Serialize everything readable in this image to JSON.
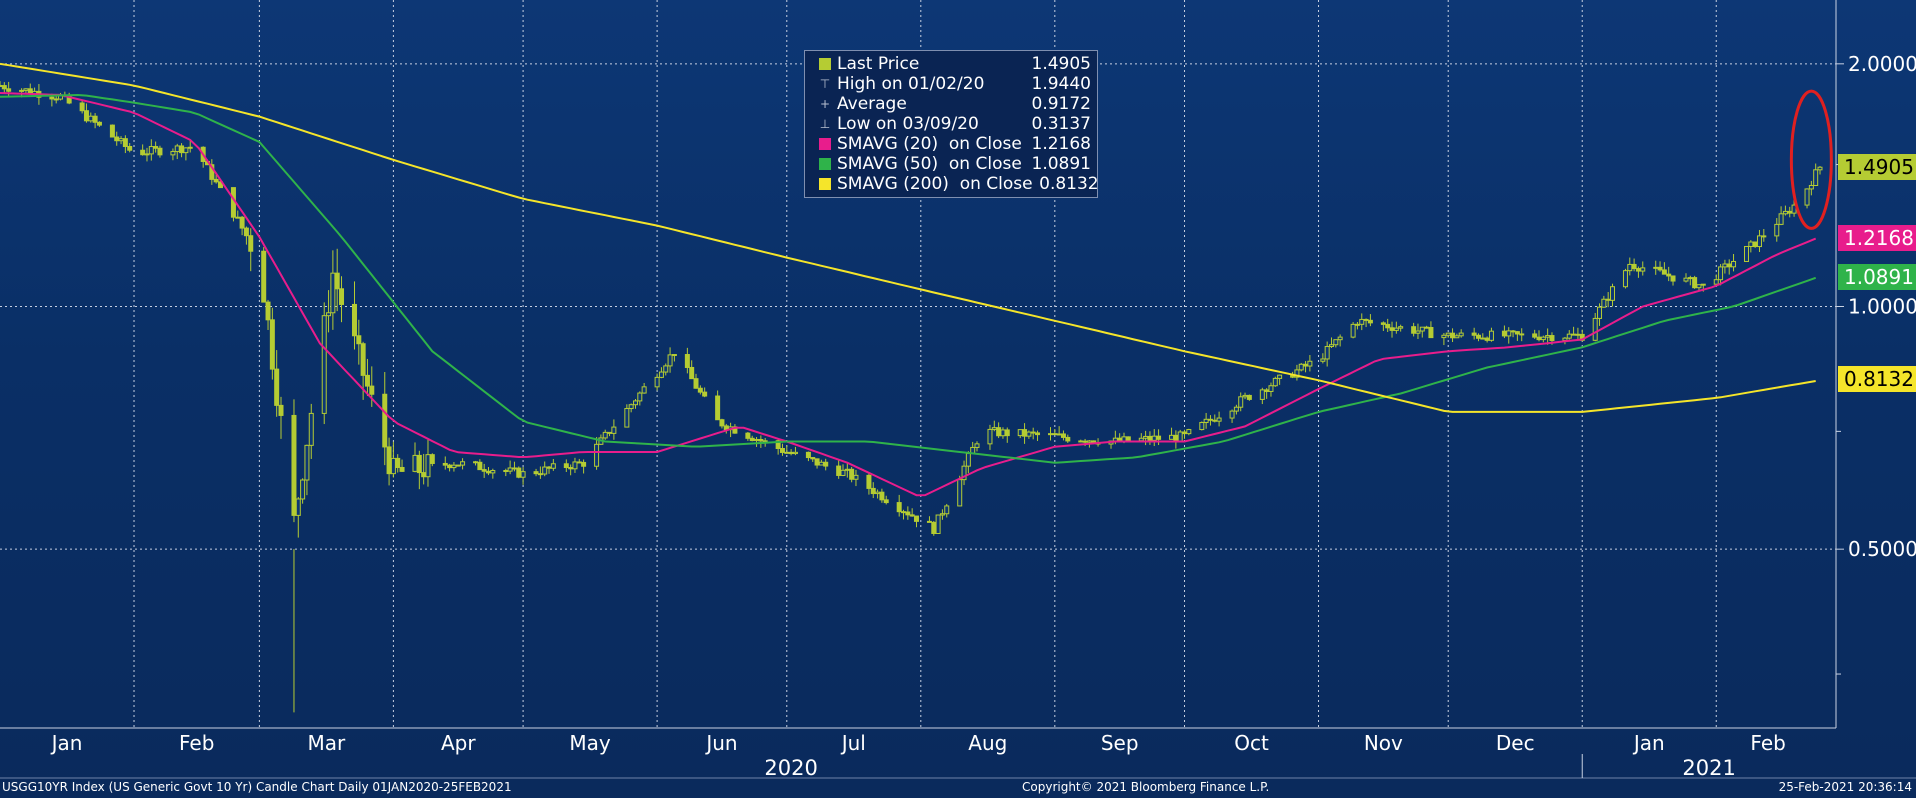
{
  "chart_data": {
    "type": "candlestick",
    "title": "USGG10YR Index (US Generic Govt 10 Yr) Candle Chart  Daily 01JAN2020-25FEB2021",
    "x_range": [
      "2020-01-01",
      "2021-02-25"
    ],
    "y_scale": "log",
    "ylim": [
      0.3,
      2.4
    ],
    "y_ticks": [
      "2.0000",
      "1.0000",
      "0.5000"
    ],
    "x_tick_labels": [
      "Jan",
      "Feb",
      "Mar",
      "Apr",
      "May",
      "Jun",
      "Jul",
      "Aug",
      "Sep",
      "Oct",
      "Nov",
      "Dec",
      "Jan",
      "Feb"
    ],
    "year_labels": [
      "2020",
      "2021"
    ],
    "grid": true,
    "legend_position": "top-center",
    "legend": [
      {
        "label": "Last Price",
        "value": "1.4905",
        "glyph": "square",
        "color": "#b5cc33"
      },
      {
        "label": "High on 01/02/20",
        "value": "1.9440",
        "glyph": "high"
      },
      {
        "label": "Average",
        "value": "0.9172",
        "glyph": "average"
      },
      {
        "label": "Low on 03/09/20",
        "value": "0.3137",
        "glyph": "low"
      },
      {
        "label": "SMAVG (20)  on Close",
        "value": "1.2168",
        "glyph": "square",
        "color": "#e81d8c"
      },
      {
        "label": "SMAVG (50)  on Close",
        "value": "1.0891",
        "glyph": "square",
        "color": "#2fb34a"
      },
      {
        "label": "SMAVG (200)  on Close",
        "value": "0.8132",
        "glyph": "square",
        "color": "#f5e52a"
      }
    ],
    "price_tags": [
      {
        "value": "1.4905",
        "color": "#b5cc33"
      },
      {
        "value": "1.2168",
        "color": "#e81d8c"
      },
      {
        "value": "1.0891",
        "color": "#2fb34a"
      },
      {
        "value": "0.8132",
        "color": "#f5e52a"
      }
    ],
    "series": [
      {
        "name": "Last Price",
        "type": "candles",
        "color": "#b5cc33",
        "x": [
          "2020-01-01",
          "2020-01-15",
          "2020-02-01",
          "2020-02-15",
          "2020-03-01",
          "2020-03-09",
          "2020-03-18",
          "2020-04-01",
          "2020-04-15",
          "2020-05-01",
          "2020-05-15",
          "2020-06-05",
          "2020-06-15",
          "2020-07-01",
          "2020-07-15",
          "2020-08-04",
          "2020-08-15",
          "2020-09-01",
          "2020-09-15",
          "2020-10-01",
          "2020-10-15",
          "2020-11-01",
          "2020-11-10",
          "2020-12-01",
          "2020-12-15",
          "2021-01-01",
          "2021-01-12",
          "2021-01-29",
          "2021-02-10",
          "2021-02-20",
          "2021-02-25"
        ],
        "values": [
          1.88,
          1.82,
          1.55,
          1.58,
          1.15,
          0.54,
          1.1,
          0.62,
          0.64,
          0.62,
          0.64,
          0.88,
          0.72,
          0.66,
          0.62,
          0.53,
          0.7,
          0.69,
          0.68,
          0.69,
          0.77,
          0.86,
          0.96,
          0.92,
          0.92,
          0.92,
          1.13,
          1.06,
          1.2,
          1.35,
          1.49
        ]
      },
      {
        "name": "SMAVG (20)",
        "type": "line",
        "color": "#e81d8c",
        "x": [
          "2020-01-01",
          "2020-01-15",
          "2020-02-01",
          "2020-02-15",
          "2020-03-01",
          "2020-03-15",
          "2020-04-01",
          "2020-04-15",
          "2020-05-01",
          "2020-05-15",
          "2020-06-01",
          "2020-06-20",
          "2020-07-01",
          "2020-07-15",
          "2020-08-01",
          "2020-08-15",
          "2020-09-01",
          "2020-09-15",
          "2020-10-01",
          "2020-10-15",
          "2020-11-01",
          "2020-11-15",
          "2020-12-01",
          "2020-12-15",
          "2021-01-01",
          "2021-01-15",
          "2021-02-01",
          "2021-02-15",
          "2021-02-25"
        ],
        "values": [
          1.84,
          1.83,
          1.74,
          1.6,
          1.22,
          0.9,
          0.72,
          0.66,
          0.65,
          0.66,
          0.66,
          0.71,
          0.68,
          0.64,
          0.58,
          0.63,
          0.67,
          0.68,
          0.68,
          0.71,
          0.79,
          0.86,
          0.88,
          0.89,
          0.91,
          1.0,
          1.06,
          1.16,
          1.22
        ]
      },
      {
        "name": "SMAVG (50)",
        "type": "line",
        "color": "#2fb34a",
        "x": [
          "2020-01-01",
          "2020-01-20",
          "2020-02-01",
          "2020-02-15",
          "2020-03-01",
          "2020-03-20",
          "2020-04-10",
          "2020-05-01",
          "2020-05-20",
          "2020-06-10",
          "2020-07-01",
          "2020-07-20",
          "2020-08-10",
          "2020-09-01",
          "2020-09-20",
          "2020-10-10",
          "2020-11-01",
          "2020-11-20",
          "2020-12-10",
          "2021-01-01",
          "2021-01-20",
          "2021-02-05",
          "2021-02-25"
        ],
        "values": [
          1.82,
          1.83,
          1.79,
          1.74,
          1.6,
          1.22,
          0.88,
          0.72,
          0.68,
          0.67,
          0.68,
          0.68,
          0.66,
          0.64,
          0.65,
          0.68,
          0.74,
          0.78,
          0.84,
          0.89,
          0.96,
          1.0,
          1.09
        ]
      },
      {
        "name": "SMAVG (200)",
        "type": "line",
        "color": "#f5e52a",
        "x": [
          "2020-01-01",
          "2020-02-01",
          "2020-03-01",
          "2020-04-01",
          "2020-05-01",
          "2020-06-01",
          "2020-07-01",
          "2020-08-01",
          "2020-09-01",
          "2020-10-01",
          "2020-11-01",
          "2020-12-01",
          "2021-01-01",
          "2021-02-01",
          "2021-02-25"
        ],
        "values": [
          2.0,
          1.88,
          1.72,
          1.52,
          1.36,
          1.26,
          1.15,
          1.05,
          0.96,
          0.88,
          0.81,
          0.74,
          0.74,
          0.77,
          0.81
        ]
      }
    ]
  },
  "footer": {
    "left": "USGG10YR Index (US Generic Govt 10 Yr) Candle Chart  Daily 01JAN2020-25FEB2021",
    "center": "Copyright© 2021 Bloomberg Finance L.P.",
    "right": "25-Feb-2021 20:36:14"
  },
  "annotation": {
    "type": "ellipse",
    "color": "#e02020",
    "x_center": "2021-02-23",
    "y_range": [
      1.25,
      1.85
    ]
  }
}
